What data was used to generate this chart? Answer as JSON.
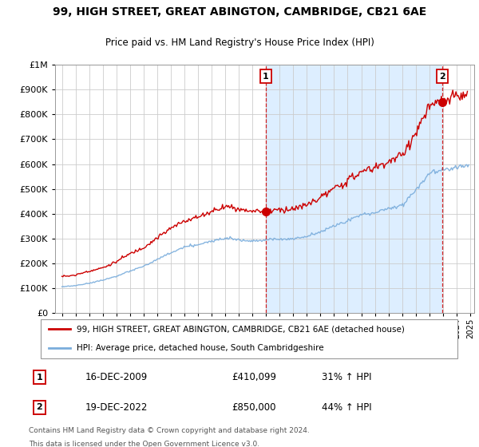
{
  "title": "99, HIGH STREET, GREAT ABINGTON, CAMBRIDGE, CB21 6AE",
  "subtitle": "Price paid vs. HM Land Registry's House Price Index (HPI)",
  "red_label": "99, HIGH STREET, GREAT ABINGTON, CAMBRIDGE, CB21 6AE (detached house)",
  "blue_label": "HPI: Average price, detached house, South Cambridgeshire",
  "annotation1": {
    "num": "1",
    "date": "16-DEC-2009",
    "price": "£410,099",
    "pct": "31% ↑ HPI",
    "x_year": 2009.96,
    "y_val": 410099
  },
  "annotation2": {
    "num": "2",
    "date": "19-DEC-2022",
    "price": "£850,000",
    "pct": "44% ↑ HPI",
    "x_year": 2022.96,
    "y_val": 850000
  },
  "footer1": "Contains HM Land Registry data © Crown copyright and database right 2024.",
  "footer2": "This data is licensed under the Open Government Licence v3.0.",
  "red_color": "#cc0000",
  "blue_color": "#7aaddc",
  "shade_color": "#ddeeff",
  "vline_color": "#cc0000",
  "bg_color": "#ffffff",
  "grid_color": "#cccccc",
  "ylim": [
    0,
    1000000
  ],
  "xlim_start": 1994.5,
  "xlim_end": 2025.3
}
